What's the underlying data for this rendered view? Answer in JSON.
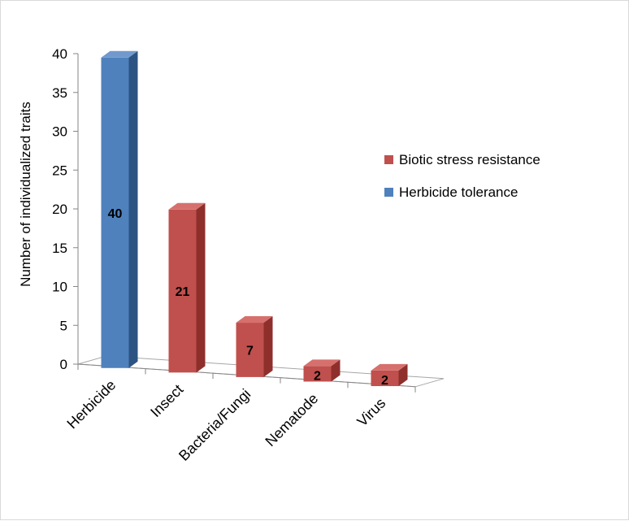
{
  "chart_data": {
    "type": "bar",
    "style": "3d-column",
    "ylabel": "Number of individualized traits",
    "xlabel": "",
    "ylim": [
      0,
      40
    ],
    "yticks": [
      0,
      5,
      10,
      15,
      20,
      25,
      30,
      35,
      40
    ],
    "categories": [
      "Herbicide",
      "Insect",
      "Bacteria/Fungi",
      "Nematode",
      "Virus"
    ],
    "values": [
      40,
      21,
      7,
      2,
      2
    ],
    "bar_series": [
      "Herbicide tolerance",
      "Biotic stress resistance",
      "Biotic stress resistance",
      "Biotic stress resistance",
      "Biotic stress resistance"
    ],
    "series": [
      {
        "name": "Biotic stress resistance",
        "color": "#c0504d",
        "side_color": "#8e2f2c",
        "top_color": "#d6706d"
      },
      {
        "name": "Herbicide tolerance",
        "color": "#4f81bd",
        "side_color": "#2c5382",
        "top_color": "#7199cc"
      }
    ],
    "legend_position": "right",
    "grid": false
  }
}
